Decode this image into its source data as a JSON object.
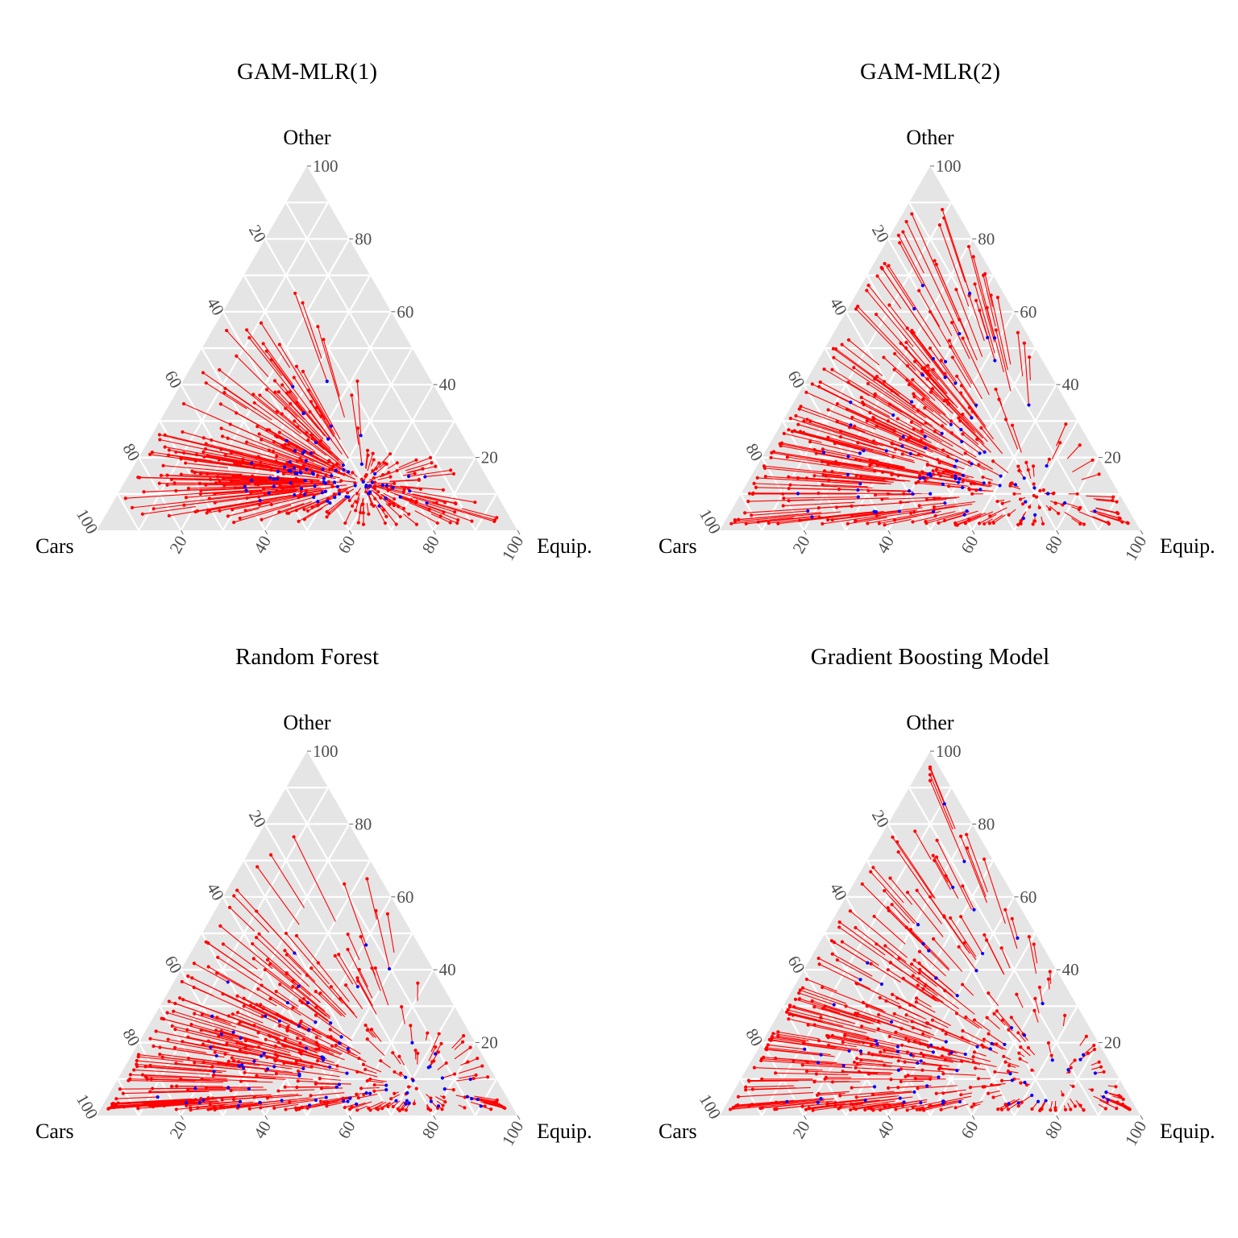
{
  "colors": {
    "panel_bg": "#e5e5e5",
    "grid": "#ffffff",
    "predicted": "#ff0000",
    "observed": "#0000ff",
    "ticks": "#4d4d4d"
  },
  "chart_data": [
    {
      "type": "scatter",
      "subtype": "ternary",
      "title": "GAM-MLR(1)",
      "axes": {
        "top": "Other",
        "left": "Cars",
        "right": "Equip."
      },
      "ticks": [
        20,
        40,
        60,
        80,
        100
      ],
      "series": [
        {
          "name": "segments (observed to predicted)",
          "color": "#ff0000"
        },
        {
          "name": "predicted",
          "color": "#ff0000"
        },
        {
          "name": "observed",
          "color": "#0000ff"
        }
      ],
      "sample_points": [
        {
          "cars": 30,
          "equip": 56,
          "other": 14
        },
        {
          "cars": 40,
          "equip": 45,
          "other": 15
        },
        {
          "cars": 25,
          "equip": 63,
          "other": 12
        },
        {
          "cars": 60,
          "equip": 25,
          "other": 15
        },
        {
          "cars": 75,
          "equip": 12,
          "other": 13
        },
        {
          "cars": 20,
          "equip": 72,
          "other": 8
        },
        {
          "cars": 48,
          "equip": 30,
          "other": 22
        },
        {
          "cars": 35,
          "equip": 30,
          "other": 35
        },
        {
          "cars": 45,
          "equip": 20,
          "other": 35
        },
        {
          "cars": 15,
          "equip": 80,
          "other": 5
        },
        {
          "cars": 70,
          "equip": 10,
          "other": 20
        },
        {
          "cars": 55,
          "equip": 35,
          "other": 10
        },
        {
          "cars": 30,
          "equip": 25,
          "other": 45
        },
        {
          "cars": 38,
          "equip": 50,
          "other": 12
        },
        {
          "cars": 28,
          "equip": 60,
          "other": 12
        },
        {
          "cars": 66,
          "equip": 20,
          "other": 14
        },
        {
          "cars": 52,
          "equip": 28,
          "other": 20
        },
        {
          "cars": 24,
          "equip": 70,
          "other": 6
        }
      ]
    },
    {
      "type": "scatter",
      "subtype": "ternary",
      "title": "GAM-MLR(2)",
      "axes": {
        "top": "Other",
        "left": "Cars",
        "right": "Equip."
      },
      "ticks": [
        20,
        40,
        60,
        80,
        100
      ],
      "series": [
        {
          "name": "segments (observed to predicted)",
          "color": "#ff0000"
        },
        {
          "name": "predicted",
          "color": "#ff0000"
        },
        {
          "name": "observed",
          "color": "#0000ff"
        }
      ],
      "sample_points": [
        {
          "cars": 35,
          "equip": 55,
          "other": 10
        },
        {
          "cars": 45,
          "equip": 40,
          "other": 15
        },
        {
          "cars": 25,
          "equip": 65,
          "other": 10
        },
        {
          "cars": 60,
          "equip": 25,
          "other": 15
        },
        {
          "cars": 80,
          "equip": 10,
          "other": 10
        },
        {
          "cars": 15,
          "equip": 78,
          "other": 7
        },
        {
          "cars": 45,
          "equip": 25,
          "other": 30
        },
        {
          "cars": 35,
          "equip": 25,
          "other": 40
        },
        {
          "cars": 25,
          "equip": 25,
          "other": 50
        },
        {
          "cars": 20,
          "equip": 20,
          "other": 60
        },
        {
          "cars": 70,
          "equip": 15,
          "other": 15
        },
        {
          "cars": 55,
          "equip": 35,
          "other": 10
        },
        {
          "cars": 30,
          "equip": 40,
          "other": 30
        },
        {
          "cars": 10,
          "equip": 80,
          "other": 10
        },
        {
          "cars": 65,
          "equip": 5,
          "other": 30
        },
        {
          "cars": 12,
          "equip": 15,
          "other": 73
        },
        {
          "cars": 40,
          "equip": 45,
          "other": 15
        },
        {
          "cars": 50,
          "equip": 20,
          "other": 30
        }
      ]
    },
    {
      "type": "scatter",
      "subtype": "ternary",
      "title": "Random Forest",
      "axes": {
        "top": "Other",
        "left": "Cars",
        "right": "Equip."
      },
      "ticks": [
        20,
        40,
        60,
        80,
        100
      ],
      "series": [
        {
          "name": "segments (observed to predicted)",
          "color": "#ff0000"
        },
        {
          "name": "predicted",
          "color": "#ff0000"
        },
        {
          "name": "observed",
          "color": "#0000ff"
        }
      ],
      "sample_points": [
        {
          "cars": 40,
          "equip": 45,
          "other": 15
        },
        {
          "cars": 55,
          "equip": 30,
          "other": 15
        },
        {
          "cars": 30,
          "equip": 60,
          "other": 10
        },
        {
          "cars": 70,
          "equip": 20,
          "other": 10
        },
        {
          "cars": 82,
          "equip": 8,
          "other": 10
        },
        {
          "cars": 15,
          "equip": 80,
          "other": 5
        },
        {
          "cars": 50,
          "equip": 20,
          "other": 30
        },
        {
          "cars": 40,
          "equip": 20,
          "other": 40
        },
        {
          "cars": 35,
          "equip": 30,
          "other": 35
        },
        {
          "cars": 10,
          "equip": 85,
          "other": 5
        },
        {
          "cars": 65,
          "equip": 10,
          "other": 25
        },
        {
          "cars": 60,
          "equip": 35,
          "other": 5
        },
        {
          "cars": 30,
          "equip": 20,
          "other": 50
        },
        {
          "cars": 45,
          "equip": 40,
          "other": 15
        },
        {
          "cars": 25,
          "equip": 60,
          "other": 15
        },
        {
          "cars": 75,
          "equip": 15,
          "other": 10
        },
        {
          "cars": 20,
          "equip": 70,
          "other": 10
        },
        {
          "cars": 50,
          "equip": 35,
          "other": 15
        }
      ]
    },
    {
      "type": "scatter",
      "subtype": "ternary",
      "title": "Gradient Boosting Model",
      "axes": {
        "top": "Other",
        "left": "Cars",
        "right": "Equip."
      },
      "ticks": [
        20,
        40,
        60,
        80,
        100
      ],
      "series": [
        {
          "name": "segments (observed to predicted)",
          "color": "#ff0000"
        },
        {
          "name": "predicted",
          "color": "#ff0000"
        },
        {
          "name": "observed",
          "color": "#0000ff"
        }
      ],
      "sample_points": [
        {
          "cars": 35,
          "equip": 50,
          "other": 15
        },
        {
          "cars": 50,
          "equip": 35,
          "other": 15
        },
        {
          "cars": 25,
          "equip": 65,
          "other": 10
        },
        {
          "cars": 70,
          "equip": 20,
          "other": 10
        },
        {
          "cars": 85,
          "equip": 5,
          "other": 10
        },
        {
          "cars": 12,
          "equip": 80,
          "other": 8
        },
        {
          "cars": 50,
          "equip": 20,
          "other": 30
        },
        {
          "cars": 40,
          "equip": 20,
          "other": 40
        },
        {
          "cars": 30,
          "equip": 25,
          "other": 45
        },
        {
          "cars": 20,
          "equip": 20,
          "other": 60
        },
        {
          "cars": 60,
          "equip": 10,
          "other": 30
        },
        {
          "cars": 65,
          "equip": 30,
          "other": 5
        },
        {
          "cars": 28,
          "equip": 45,
          "other": 27
        },
        {
          "cars": 8,
          "equip": 85,
          "other": 7
        },
        {
          "cars": 75,
          "equip": 10,
          "other": 15
        },
        {
          "cars": 14,
          "equip": 16,
          "other": 70
        },
        {
          "cars": 45,
          "equip": 45,
          "other": 10
        },
        {
          "cars": 55,
          "equip": 15,
          "other": 30
        }
      ]
    }
  ]
}
